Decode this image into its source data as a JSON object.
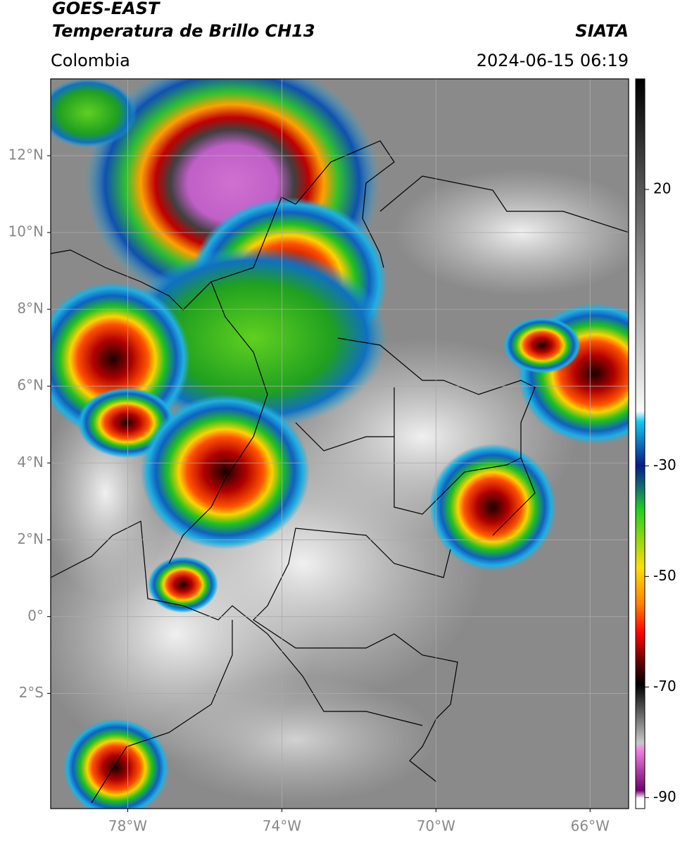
{
  "header": {
    "satellite": "GOES-EAST",
    "product": "Temperatura de Brillo CH13",
    "source": "SIATA",
    "region": "Colombia",
    "timestamp": "2024-06-15 06:19"
  },
  "map": {
    "xlim": [
      -80,
      -65
    ],
    "ylim": [
      -5,
      14
    ],
    "xticks": [
      {
        "value": -78,
        "label": "78°W"
      },
      {
        "value": -74,
        "label": "74°W"
      },
      {
        "value": -70,
        "label": "70°W"
      },
      {
        "value": -66,
        "label": "66°W"
      }
    ],
    "yticks": [
      {
        "value": 12,
        "label": "12°N"
      },
      {
        "value": 10,
        "label": "10°N"
      },
      {
        "value": 8,
        "label": "8°N"
      },
      {
        "value": 6,
        "label": "6°N"
      },
      {
        "value": 4,
        "label": "4°N"
      },
      {
        "value": 2,
        "label": "2°N"
      },
      {
        "value": 0,
        "label": "0°"
      },
      {
        "value": -2,
        "label": "2°S"
      }
    ],
    "grid": true
  },
  "colorbar": {
    "lim": [
      -92,
      40
    ],
    "ticks": [
      20,
      -30,
      -50,
      -70,
      -90
    ]
  }
}
